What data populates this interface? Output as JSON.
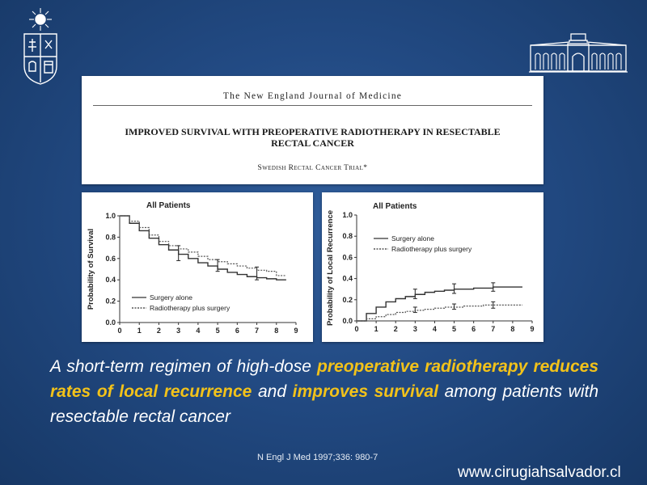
{
  "paper": {
    "journal": "The New England Journal of Medicine",
    "title_line1": "IMPROVED SURVIVAL WITH PREOPERATIVE RADIOTHERAPY IN RESECTABLE",
    "title_line2": "RECTAL CANCER",
    "byline": "Swedish Rectal Cancer Trial*"
  },
  "chart_data": [
    {
      "type": "line",
      "title": "All Patients",
      "xlabel": "",
      "ylabel": "Probability of Survival",
      "xlim": [
        0,
        9
      ],
      "ylim": [
        0,
        1.0
      ],
      "x_ticks": [
        "0",
        "1",
        "2",
        "3",
        "4",
        "5",
        "6",
        "7",
        "8",
        "9"
      ],
      "y_ticks": [
        "0.0",
        "0.2",
        "0.4",
        "0.6",
        "0.8",
        "1.0"
      ],
      "legend_position": "bottom-left",
      "series": [
        {
          "name": "Surgery alone",
          "style": "solid",
          "x": [
            0,
            0.5,
            1,
            1.5,
            2,
            2.5,
            3,
            3.5,
            4,
            4.5,
            5,
            5.5,
            6,
            6.5,
            7,
            7.5,
            8,
            8.5
          ],
          "y": [
            1.0,
            0.93,
            0.86,
            0.79,
            0.73,
            0.68,
            0.64,
            0.6,
            0.56,
            0.53,
            0.5,
            0.47,
            0.45,
            0.43,
            0.42,
            0.41,
            0.4,
            0.4
          ]
        },
        {
          "name": "Radiotherapy plus surgery",
          "style": "dotted",
          "x": [
            0,
            0.5,
            1,
            1.5,
            2,
            2.5,
            3,
            3.5,
            4,
            4.5,
            5,
            5.5,
            6,
            6.5,
            7,
            7.5,
            8,
            8.5
          ],
          "y": [
            1.0,
            0.95,
            0.89,
            0.82,
            0.76,
            0.72,
            0.69,
            0.66,
            0.62,
            0.59,
            0.57,
            0.55,
            0.53,
            0.51,
            0.49,
            0.48,
            0.44,
            0.44
          ]
        }
      ],
      "error_bars": [
        {
          "x": 3,
          "y": 0.62,
          "low": 0.58,
          "high": 0.72
        },
        {
          "x": 5,
          "y": 0.52,
          "low": 0.48,
          "high": 0.59
        },
        {
          "x": 7,
          "y": 0.45,
          "low": 0.4,
          "high": 0.52
        }
      ]
    },
    {
      "type": "line",
      "title": "All Patients",
      "xlabel": "",
      "ylabel": "Probability of Local Recurrence",
      "xlim": [
        0,
        9
      ],
      "ylim": [
        0,
        1.0
      ],
      "x_ticks": [
        "0",
        "1",
        "2",
        "3",
        "4",
        "5",
        "6",
        "7",
        "8",
        "9"
      ],
      "y_ticks": [
        "0.0",
        "0.2",
        "0.4",
        "0.6",
        "0.8",
        "1.0"
      ],
      "legend_position": "top-left",
      "series": [
        {
          "name": "Surgery alone",
          "style": "solid",
          "x": [
            0,
            0.5,
            1,
            1.5,
            2,
            2.5,
            3,
            3.5,
            4,
            4.5,
            5,
            5.5,
            6,
            6.5,
            7,
            7.5,
            8,
            8.5
          ],
          "y": [
            0.0,
            0.07,
            0.13,
            0.18,
            0.21,
            0.23,
            0.25,
            0.27,
            0.28,
            0.29,
            0.3,
            0.3,
            0.31,
            0.31,
            0.32,
            0.32,
            0.32,
            0.32
          ]
        },
        {
          "name": "Radiotherapy plus surgery",
          "style": "dotted",
          "x": [
            0,
            0.5,
            1,
            1.5,
            2,
            2.5,
            3,
            3.5,
            4,
            4.5,
            5,
            5.5,
            6,
            6.5,
            7,
            7.5,
            8,
            8.5
          ],
          "y": [
            0.0,
            0.02,
            0.04,
            0.06,
            0.08,
            0.09,
            0.1,
            0.11,
            0.12,
            0.13,
            0.13,
            0.14,
            0.14,
            0.15,
            0.15,
            0.15,
            0.15,
            0.15
          ]
        }
      ],
      "error_bars": [
        {
          "x": 3,
          "y": 0.25,
          "low": 0.21,
          "high": 0.3
        },
        {
          "x": 5,
          "y": 0.3,
          "low": 0.26,
          "high": 0.35
        },
        {
          "x": 7,
          "y": 0.32,
          "low": 0.28,
          "high": 0.36
        },
        {
          "x": 3,
          "y": 0.1,
          "low": 0.08,
          "high": 0.13
        },
        {
          "x": 5,
          "y": 0.13,
          "low": 0.11,
          "high": 0.16
        },
        {
          "x": 7,
          "y": 0.15,
          "low": 0.12,
          "high": 0.18
        }
      ]
    }
  ],
  "caption": {
    "part1": "A short-term regimen of high-dose ",
    "hl1": "preoperative radiotherapy reduces rates of local recurrence",
    "part2": " and ",
    "hl2": "improves survival",
    "part3": " among patients with resectable rectal cancer"
  },
  "citation": "N Engl J Med 1997;336:  980-7",
  "website": "www.cirugiahsalvador.cl",
  "colors": {
    "background": "#224a83",
    "highlight": "#f2c21a",
    "caption_text": "#ffffff"
  },
  "icons": {
    "left_logo": "university-crest-icon",
    "right_logo": "hospital-building-icon"
  }
}
